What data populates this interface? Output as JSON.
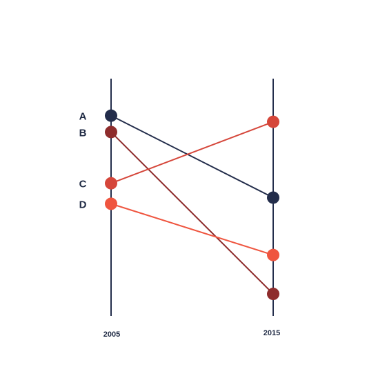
{
  "chart_data": {
    "type": "slope",
    "x": [
      "2005",
      "2015"
    ],
    "series": [
      {
        "name": "A",
        "values": [
          89,
          49
        ],
        "color": "#232d4b"
      },
      {
        "name": "B",
        "values": [
          81,
          2
        ],
        "color": "#8e2c2c"
      },
      {
        "name": "C",
        "values": [
          56,
          86
        ],
        "color": "#d5463a"
      },
      {
        "name": "D",
        "values": [
          46,
          21
        ],
        "color": "#ef553f"
      }
    ],
    "ylim": [
      0,
      100
    ],
    "axis_color": "#232d4b"
  }
}
